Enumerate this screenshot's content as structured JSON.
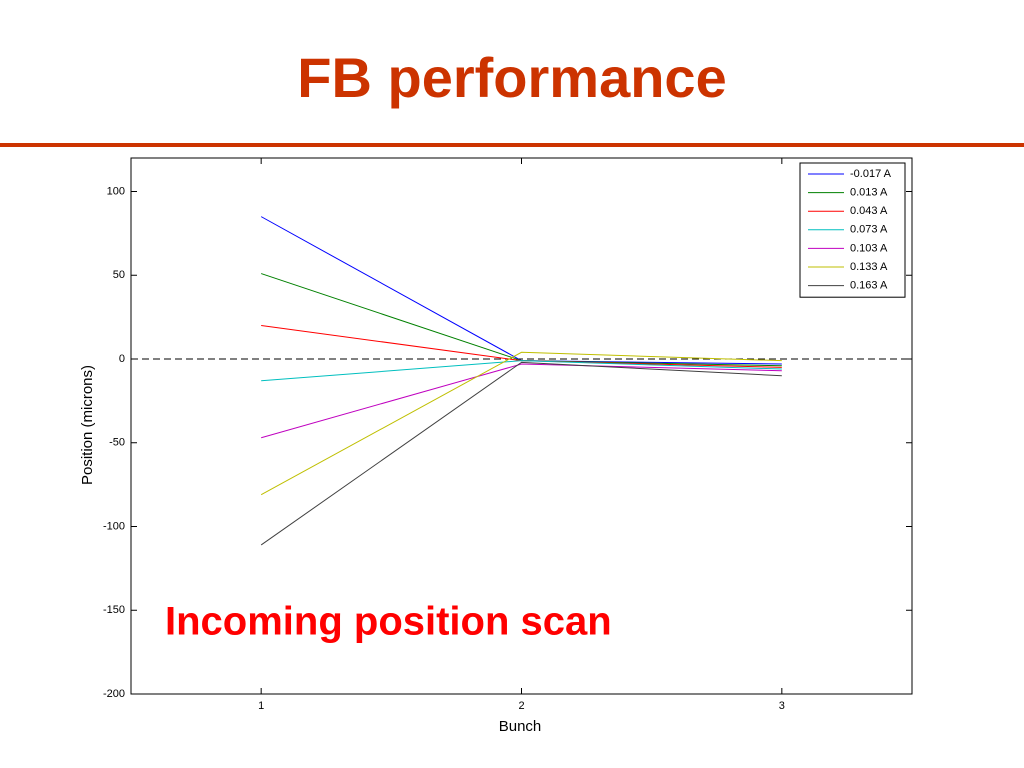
{
  "chart_data": {
    "type": "line",
    "title": "FB performance",
    "annotation": "Incoming position scan",
    "x_label": "Bunch",
    "y_label": "Position (microns)",
    "x": [
      1,
      2,
      3
    ],
    "xlim": [
      0.5,
      3.5
    ],
    "xticks": [
      1,
      2,
      3
    ],
    "ylim": [
      -200,
      120
    ],
    "yticks": [
      -200,
      -150,
      -100,
      -50,
      0,
      50,
      100
    ],
    "hline": 0,
    "legend": "top-right",
    "series": [
      {
        "name": "-0.017 A",
        "color": "#0000ff",
        "values": [
          85,
          -1,
          -3
        ]
      },
      {
        "name": "0.013 A",
        "color": "#008000",
        "values": [
          51,
          -1,
          -4
        ]
      },
      {
        "name": "0.043 A",
        "color": "#ff0000",
        "values": [
          20,
          -1,
          -5
        ]
      },
      {
        "name": "0.073 A",
        "color": "#00bfbf",
        "values": [
          -13,
          -1,
          -6
        ]
      },
      {
        "name": "0.103 A",
        "color": "#bf00bf",
        "values": [
          -47,
          -3,
          -7
        ]
      },
      {
        "name": "0.133 A",
        "color": "#bfbf00",
        "values": [
          -81,
          4,
          -1
        ]
      },
      {
        "name": "0.163 A",
        "color": "#404040",
        "values": [
          -111,
          -2,
          -10
        ]
      }
    ]
  }
}
